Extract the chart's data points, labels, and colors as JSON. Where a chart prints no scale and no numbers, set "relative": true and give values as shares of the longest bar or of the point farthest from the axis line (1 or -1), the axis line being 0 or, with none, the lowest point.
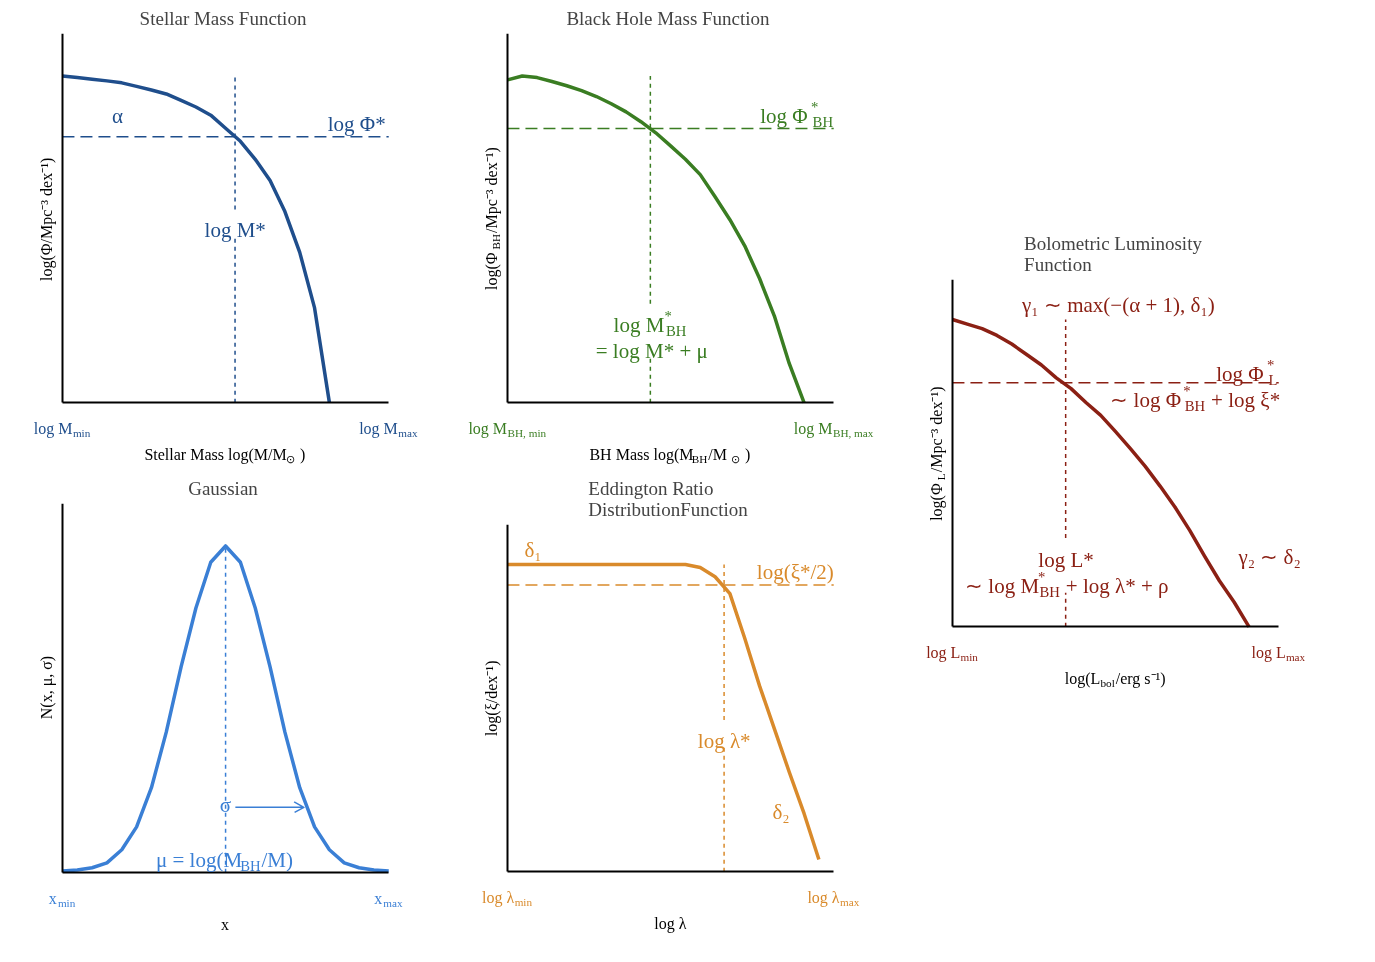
{
  "chart_data": [
    {
      "type": "line",
      "title": "Stellar Mass Function",
      "xlabel": "Stellar Mass log(M/M$_{⊙}$)",
      "ylabel": "log(Φ/Mpc⁻³ dex⁻¹)",
      "relative": true,
      "categories": [
        "log M$_{min}$",
        null,
        null,
        null,
        null,
        null,
        null,
        null,
        null,
        null,
        null,
        null,
        null,
        null,
        null,
        null,
        null,
        null,
        null,
        null,
        null,
        null,
        "log M$_{max}$"
      ],
      "series": [
        {
          "color": "#1f4e8c",
          "values": [
            1,
            0.995,
            0.99,
            0.985,
            0.979,
            0.968,
            0.957,
            0.945,
            0.925,
            0.905,
            0.88,
            0.84,
            0.8,
            0.745,
            0.68,
            0.585,
            0.46,
            0.29,
            0,
            null,
            null,
            null,
            null
          ]
        }
      ],
      "ref_lines": [
        {
          "axis": "y",
          "value": 0.814,
          "label": "log Φ*",
          "color": "#1f4e8c",
          "line_style": "dashed"
        }
      ],
      "annotations": [
        "α",
        "log M*"
      ]
    },
    {
      "type": "line",
      "title": "Black Hole Mass Function",
      "xlabel": "BH Mass log(M$_{BH}$/M$_{⊙}$)",
      "ylabel": "log(Φ$_{BH}$/Mpc⁻³ dex⁻¹)",
      "relative": true,
      "categories": [
        "log M$_{BH, min}$",
        null,
        null,
        null,
        null,
        null,
        null,
        null,
        null,
        null,
        null,
        null,
        null,
        null,
        null,
        null,
        null,
        null,
        null,
        null,
        null,
        null,
        "log M$_{BH, max}$"
      ],
      "series": [
        {
          "color": "#3a7d22",
          "values": [
            0.988,
            1,
            0.995,
            0.983,
            0.97,
            0.955,
            0.937,
            0.915,
            0.89,
            0.86,
            0.826,
            0.786,
            0.745,
            0.698,
            0.63,
            0.56,
            0.48,
            0.38,
            0.265,
            0.12,
            0,
            null,
            null
          ]
        }
      ],
      "ref_lines": [
        {
          "axis": "y",
          "value": 0.839,
          "label": "log Φ$^{*}$$_{BH}$",
          "color": "#3a7d22",
          "line_style": "dashed"
        }
      ],
      "annotations": [
        "log M$^{*}$$_{BH}$\n= log M* + μ"
      ]
    },
    {
      "type": "line",
      "title": "Bolometric Luminosity\nFunction",
      "xlabel": "log(L$_{bol}$/erg s⁻¹)",
      "ylabel": "log(Φ$_{L}$/Mpc⁻³ dex⁻¹)",
      "relative": true,
      "categories": [
        "log L$_{min}$",
        null,
        null,
        null,
        null,
        null,
        null,
        null,
        null,
        null,
        null,
        null,
        null,
        null,
        null,
        null,
        null,
        null,
        null,
        null,
        null,
        null,
        "log L$_{max}$"
      ],
      "series": [
        {
          "color": "#8b2014",
          "values": [
            1,
            0.985,
            0.97,
            0.948,
            0.92,
            0.886,
            0.852,
            0.81,
            0.775,
            0.73,
            0.688,
            0.635,
            0.58,
            0.522,
            0.458,
            0.39,
            0.314,
            0.23,
            0.15,
            0.08,
            0,
            null,
            null
          ]
        }
      ],
      "ref_lines": [
        {
          "axis": "y",
          "value": 0.794,
          "label": "log Φ$^{*}$$_{L}$\n∼ log Φ$^{*}$$_{BH}$ + log ξ*",
          "color": "#8b2014",
          "line_style": "dashed"
        }
      ],
      "annotations": [
        "γ₁ ∼ max(−(α + 1), δ₁)",
        "log L*\n∼ log M$^{*}$$_{BH}$ + log λ* + ρ",
        "γ₂ ∼ δ₂"
      ]
    },
    {
      "type": "line",
      "title": "Gaussian",
      "xlabel": "x",
      "ylabel": "N(x, μ, σ)",
      "relative": true,
      "categories": [
        "x$_{min}$",
        null,
        null,
        null,
        null,
        null,
        null,
        null,
        null,
        null,
        null,
        null,
        null,
        null,
        null,
        null,
        null,
        null,
        null,
        null,
        null,
        null,
        "x$_{max}$"
      ],
      "series": [
        {
          "color": "#3a7fd5",
          "values": [
            0.005,
            0.008,
            0.015,
            0.03,
            0.07,
            0.14,
            0.26,
            0.43,
            0.63,
            0.81,
            0.95,
            1,
            0.95,
            0.81,
            0.63,
            0.43,
            0.26,
            0.14,
            0.07,
            0.03,
            0.015,
            0.008,
            0.005
          ]
        }
      ],
      "annotations": [
        "σ",
        "μ = log(M$_{BH}$/M)"
      ]
    },
    {
      "type": "line",
      "title": "Eddington Ratio\nDistributionFunction",
      "xlabel": "log λ",
      "ylabel": "log(ξ/dex⁻¹)",
      "relative": true,
      "categories": [
        "log λ$_{min}$",
        null,
        null,
        null,
        null,
        null,
        null,
        null,
        null,
        null,
        null,
        null,
        null,
        null,
        null,
        null,
        null,
        null,
        null,
        null,
        null,
        null,
        "log λ$_{max}$"
      ],
      "series": [
        {
          "color": "#d98a2b",
          "values": [
            1,
            1,
            1,
            1,
            1,
            1,
            1,
            1,
            1,
            1,
            1,
            1,
            1,
            0.99,
            0.96,
            0.905,
            0.76,
            0.605,
            0.465,
            0.325,
            0.19,
            0.04,
            null
          ]
        }
      ],
      "ref_lines": [
        {
          "axis": "y",
          "value": 0.933,
          "label": "log(ξ*/2)",
          "color": "#d98a2b",
          "line_style": "dashed"
        }
      ],
      "annotations": [
        "δ₁",
        "log λ*",
        "δ₂"
      ]
    }
  ]
}
